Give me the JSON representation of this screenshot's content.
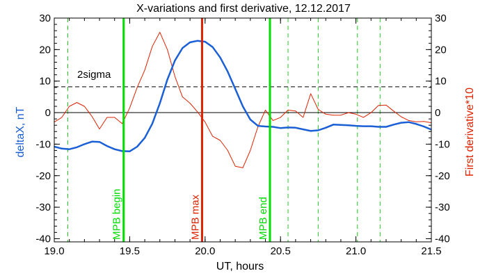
{
  "chart_data": {
    "type": "line",
    "title": "X-variations and first derivative, 12.12.2017",
    "xlabel": "UT, hours",
    "ylabel": "deltaX, nT",
    "ylabel_right": "First derivative*10",
    "xlim": [
      19.0,
      21.5
    ],
    "ylim": [
      -41,
      30
    ],
    "x_ticks": [
      "19.0",
      "19.5",
      "20.0",
      "20.5",
      "21.0",
      "21.5"
    ],
    "y_ticks": [
      "30",
      "20",
      "10",
      "0",
      "-10",
      "-20",
      "-30",
      "-40"
    ],
    "y_ticks_right": [
      "30",
      "20",
      "10",
      "0",
      "-10",
      "-20",
      "-30",
      "-40"
    ],
    "grid": false,
    "threshold": {
      "label": "2sigma",
      "y": 8.2
    },
    "zero_line": 0,
    "dashed_verticals_x": [
      19.09,
      20.55,
      20.75,
      21.01,
      21.16
    ],
    "event_lines": [
      {
        "label": "MPB begin",
        "x": 19.46,
        "color": "#00dd00"
      },
      {
        "label": "MPB max",
        "x": 19.98,
        "color": "#dd2200"
      },
      {
        "label": "MPB end",
        "x": 20.43,
        "color": "#00dd00"
      }
    ],
    "series": [
      {
        "name": "deltaX, nT",
        "color": "#1a5fd6",
        "x": [
          19.0,
          19.05,
          19.1,
          19.15,
          19.2,
          19.25,
          19.3,
          19.35,
          19.4,
          19.45,
          19.5,
          19.55,
          19.6,
          19.65,
          19.7,
          19.75,
          19.8,
          19.85,
          19.9,
          19.95,
          20.0,
          20.05,
          20.1,
          20.15,
          20.2,
          20.25,
          20.3,
          20.35,
          20.4,
          20.45,
          20.5,
          20.55,
          20.6,
          20.65,
          20.7,
          20.75,
          20.8,
          20.85,
          20.9,
          20.95,
          21.0,
          21.05,
          21.1,
          21.15,
          21.2,
          21.25,
          21.3,
          21.35,
          21.4,
          21.45,
          21.5
        ],
        "values": [
          -10.8,
          -11.4,
          -11.6,
          -11,
          -10,
          -9.2,
          -9.3,
          -10.6,
          -11.6,
          -12.2,
          -12.3,
          -10.8,
          -8,
          -3.5,
          3,
          10.5,
          16.5,
          20.5,
          22.3,
          22.8,
          22.5,
          20.8,
          17.5,
          13,
          7.5,
          2,
          -2.2,
          -4.2,
          -4.4,
          -4.5,
          -4.9,
          -4.7,
          -4.8,
          -5.3,
          -5.8,
          -5.6,
          -4.8,
          -3.8,
          -3.9,
          -4,
          -4.2,
          -4.3,
          -4.3,
          -4.5,
          -4.5,
          -3.8,
          -3.2,
          -3,
          -3.6,
          -4.4,
          -5.4
        ]
      },
      {
        "name": "First derivative*10",
        "color": "#dd2200",
        "x": [
          19.0,
          19.05,
          19.1,
          19.15,
          19.2,
          19.25,
          19.3,
          19.35,
          19.4,
          19.45,
          19.5,
          19.55,
          19.6,
          19.65,
          19.7,
          19.75,
          19.8,
          19.85,
          19.9,
          19.95,
          20.0,
          20.05,
          20.1,
          20.15,
          20.2,
          20.25,
          20.3,
          20.35,
          20.4,
          20.45,
          20.5,
          20.55,
          20.6,
          20.65,
          20.7,
          20.75,
          20.8,
          20.85,
          20.9,
          20.95,
          21.0,
          21.05,
          21.1,
          21.15,
          21.2,
          21.25,
          21.3,
          21.35,
          21.4,
          21.45,
          21.5
        ],
        "values": [
          -3,
          -1.5,
          2,
          3.2,
          2,
          -1.2,
          -5.2,
          -1.5,
          -1.5,
          -3.5,
          1.5,
          8,
          13.5,
          21,
          25.5,
          20,
          11.5,
          5,
          3,
          0.2,
          -3,
          -7.5,
          -8.8,
          -12,
          -17,
          -17.5,
          -12,
          -4.5,
          0.8,
          -2.5,
          -1.5,
          0.8,
          0.5,
          -1.5,
          6,
          1,
          -0.5,
          -0.8,
          -0.8,
          0,
          -0.5,
          -1.5,
          0,
          2.3,
          2.4,
          0.5,
          -1.3,
          -2.5,
          -2.9,
          -2.8,
          -3.2
        ]
      }
    ]
  }
}
